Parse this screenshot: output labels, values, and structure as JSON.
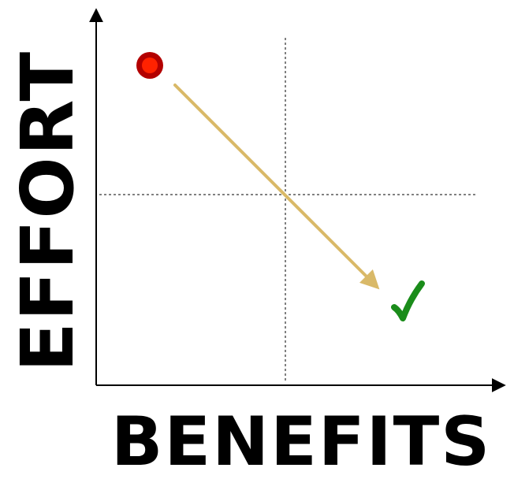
{
  "labels": {
    "y_axis": "EFFORT",
    "x_axis": "BENEFITS"
  },
  "colors": {
    "axis": "#000000",
    "quadrant_lines": "#000000",
    "start_marker_outer": "#b30000",
    "start_marker_inner": "#ff2200",
    "arrow": "#d9b968",
    "checkmark": "#1a8c1a",
    "background": "#ffffff"
  },
  "icons": {
    "start": "red-dot-icon",
    "end": "green-checkmark-icon"
  }
}
